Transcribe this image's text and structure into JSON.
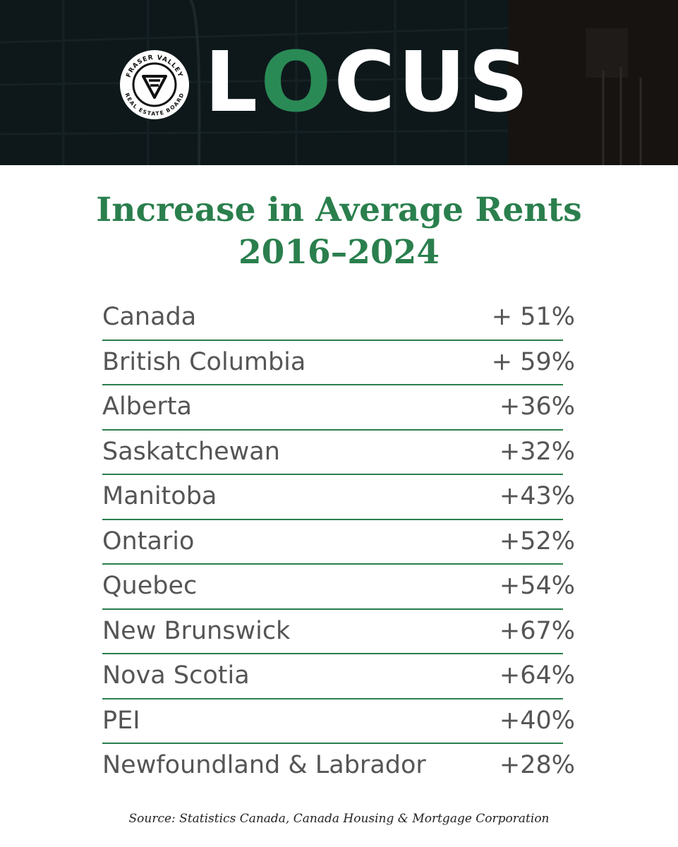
{
  "header": {
    "logo_seal_text_top": "FRASER VALLEY",
    "logo_seal_text_bottom": "REAL ESTATE BOARD",
    "wordmark": {
      "part1": "L",
      "part2": "O",
      "part3": "CUS"
    },
    "colors": {
      "brand_green": "#2a8a55",
      "banner_dark": "#142226"
    }
  },
  "title": {
    "line1": "Increase in Average Rents",
    "line2": "2016–2024"
  },
  "rows": [
    {
      "region": "Canada",
      "change": "+ 51%"
    },
    {
      "region": "British Columbia",
      "change": "+ 59%"
    },
    {
      "region": "Alberta",
      "change": "+36%"
    },
    {
      "region": "Saskatchewan",
      "change": "+32%"
    },
    {
      "region": "Manitoba",
      "change": "+43%"
    },
    {
      "region": "Ontario",
      "change": "+52%"
    },
    {
      "region": "Quebec",
      "change": "+54%"
    },
    {
      "region": "New Brunswick",
      "change": "+67%"
    },
    {
      "region": "Nova Scotia",
      "change": "+64%"
    },
    {
      "region": "PEI",
      "change": "+40%"
    },
    {
      "region": "Newfoundland & Labrador",
      "change": "+28%"
    }
  ],
  "source": "Source: Statistics Canada, Canada Housing & Mortgage Corporation"
}
